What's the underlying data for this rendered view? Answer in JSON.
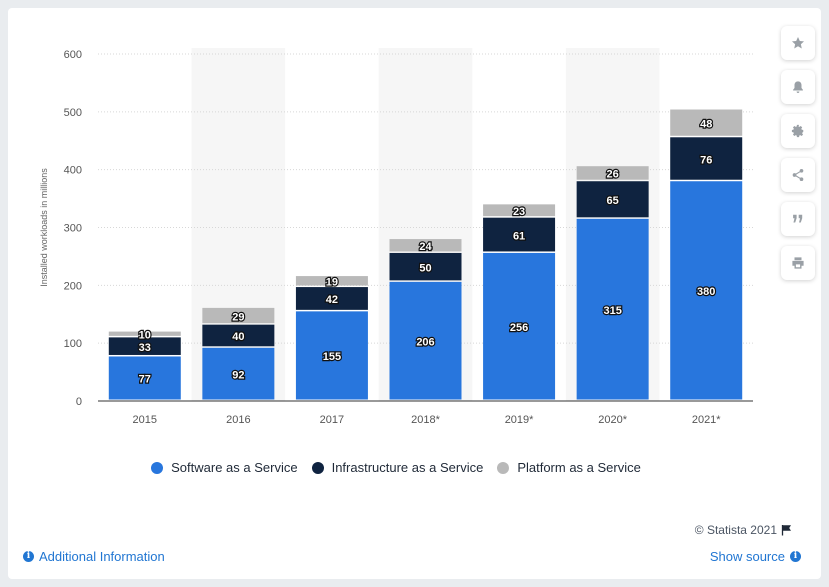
{
  "chart_data": {
    "type": "bar",
    "stacked": true,
    "categories": [
      "2015",
      "2016",
      "2017",
      "2018*",
      "2019*",
      "2020*",
      "2021*"
    ],
    "series": [
      {
        "name": "Software as a Service",
        "color": "#2876dd",
        "values": [
          77,
          92,
          155,
          206,
          256,
          315,
          380
        ]
      },
      {
        "name": "Infrastructure as a Service",
        "color": "#0f2340",
        "values": [
          33,
          40,
          42,
          50,
          61,
          65,
          76
        ]
      },
      {
        "name": "Platform as a Service",
        "color": "#b9b9b9",
        "values": [
          10,
          29,
          19,
          24,
          23,
          26,
          48
        ]
      }
    ],
    "ylabel": "Installed workloads in millions",
    "ylim": [
      0,
      600
    ],
    "yticks": [
      0,
      100,
      200,
      300,
      400,
      500,
      600
    ],
    "grid": true,
    "legend_position": "bottom"
  },
  "credit": "© Statista 2021",
  "footer": {
    "additional_info": "Additional Information",
    "show_source": "Show source"
  },
  "toolbar_icons": [
    "star-icon",
    "bell-icon",
    "gear-icon",
    "share-icon",
    "quote-icon",
    "print-icon"
  ]
}
